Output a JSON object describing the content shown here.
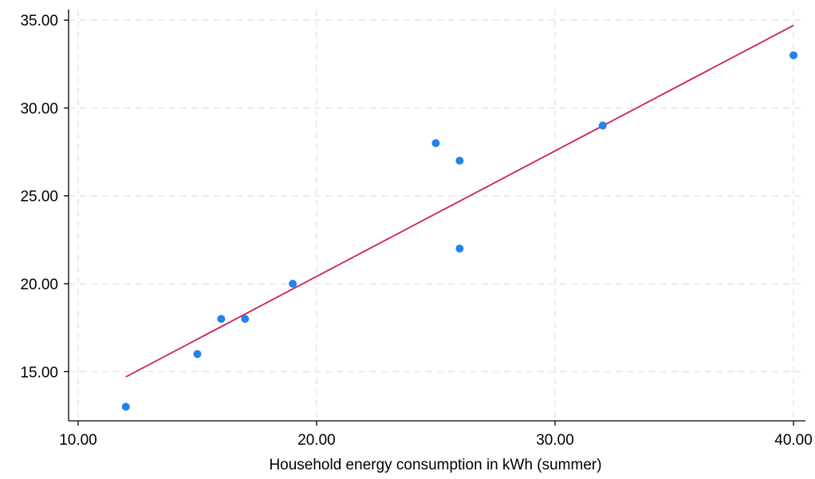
{
  "chart_data": {
    "type": "scatter",
    "title": "",
    "xlabel": "Household energy consumption in kWh (summer)",
    "ylabel": "",
    "xlim": [
      9.6,
      40.5
    ],
    "ylim": [
      12.2,
      35.6
    ],
    "x_ticks": [
      {
        "value": 10,
        "label": "10.00"
      },
      {
        "value": 20,
        "label": "20.00"
      },
      {
        "value": 30,
        "label": "30.00"
      },
      {
        "value": 40,
        "label": "40.00"
      }
    ],
    "y_ticks": [
      {
        "value": 15,
        "label": "15.00"
      },
      {
        "value": 20,
        "label": "20.00"
      },
      {
        "value": 25,
        "label": "25.00"
      },
      {
        "value": 30,
        "label": "30.00"
      },
      {
        "value": 35,
        "label": "35.00"
      }
    ],
    "grid": true,
    "points": [
      {
        "x": 12,
        "y": 13
      },
      {
        "x": 15,
        "y": 16
      },
      {
        "x": 16,
        "y": 18
      },
      {
        "x": 17,
        "y": 18
      },
      {
        "x": 19,
        "y": 20
      },
      {
        "x": 25,
        "y": 28
      },
      {
        "x": 26,
        "y": 27
      },
      {
        "x": 26,
        "y": 22
      },
      {
        "x": 32,
        "y": 29
      },
      {
        "x": 40,
        "y": 33
      }
    ],
    "fit_line": {
      "x_start": 12,
      "y_start": 14.7,
      "x_end": 40,
      "y_end": 34.7
    },
    "colors": {
      "points": "#2383ea",
      "fit_line": "#cc1e5c"
    }
  }
}
